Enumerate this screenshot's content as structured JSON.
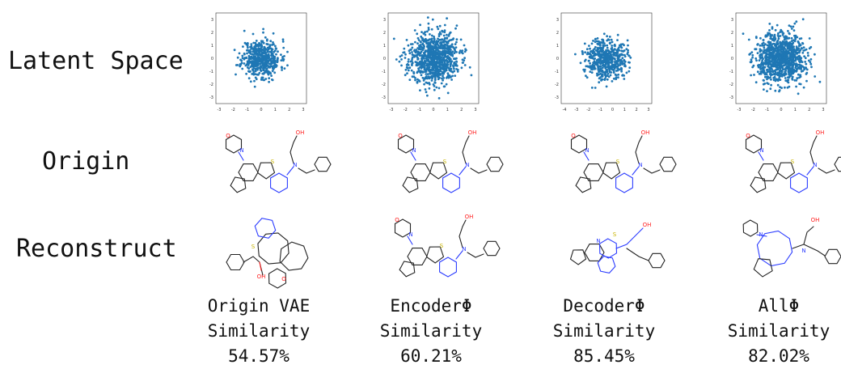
{
  "row_labels": {
    "latent": "Latent Space",
    "origin": "Origin",
    "reconstruct": "Reconstruct"
  },
  "columns": [
    {
      "method": "Origin VAE",
      "similarity_label": "Similarity",
      "similarity": "54.57%",
      "scatter": {
        "spread": 0.75,
        "n": 520,
        "seed": 11,
        "xticks": [
          "-3",
          "-2",
          "-1",
          "0",
          "1",
          "2",
          "3"
        ],
        "yticks": [
          "3",
          "2",
          "1",
          "0",
          "-1",
          "-2",
          "-3"
        ]
      }
    },
    {
      "method": "EncoderΦ",
      "similarity_label": "Similarity",
      "similarity": "60.21%",
      "scatter": {
        "spread": 1.0,
        "n": 900,
        "seed": 23,
        "xticks": [
          "-3",
          "-2",
          "-1",
          "0",
          "1",
          "2",
          "3"
        ],
        "yticks": [
          "3",
          "2",
          "1",
          "0",
          "-1",
          "-2",
          "-3"
        ]
      }
    },
    {
      "method": "DecoderΦ",
      "similarity_label": "Similarity",
      "similarity": "85.45%",
      "scatter": {
        "spread": 0.8,
        "n": 520,
        "seed": 37,
        "xticks": [
          "-4",
          "-3",
          "-2",
          "-1",
          "0",
          "1",
          "2",
          "3"
        ],
        "yticks": [
          "3",
          "2",
          "1",
          "0",
          "-1",
          "-2",
          "-3"
        ]
      }
    },
    {
      "method": "AllΦ",
      "similarity_label": "Similarity",
      "similarity": "82.02%",
      "scatter": {
        "spread": 1.0,
        "n": 1000,
        "seed": 51,
        "xticks": [
          "-3",
          "-2",
          "-1",
          "0",
          "1",
          "2",
          "3"
        ],
        "yticks": [
          "3",
          "2",
          "1",
          "0",
          "-1",
          "-2",
          "-3"
        ]
      }
    }
  ],
  "colors": {
    "points": "#1f77b4",
    "bond": "#222222",
    "nitrogen": "#2b3cff",
    "oxygen": "#ff2020",
    "sulfur": "#c8b400"
  }
}
